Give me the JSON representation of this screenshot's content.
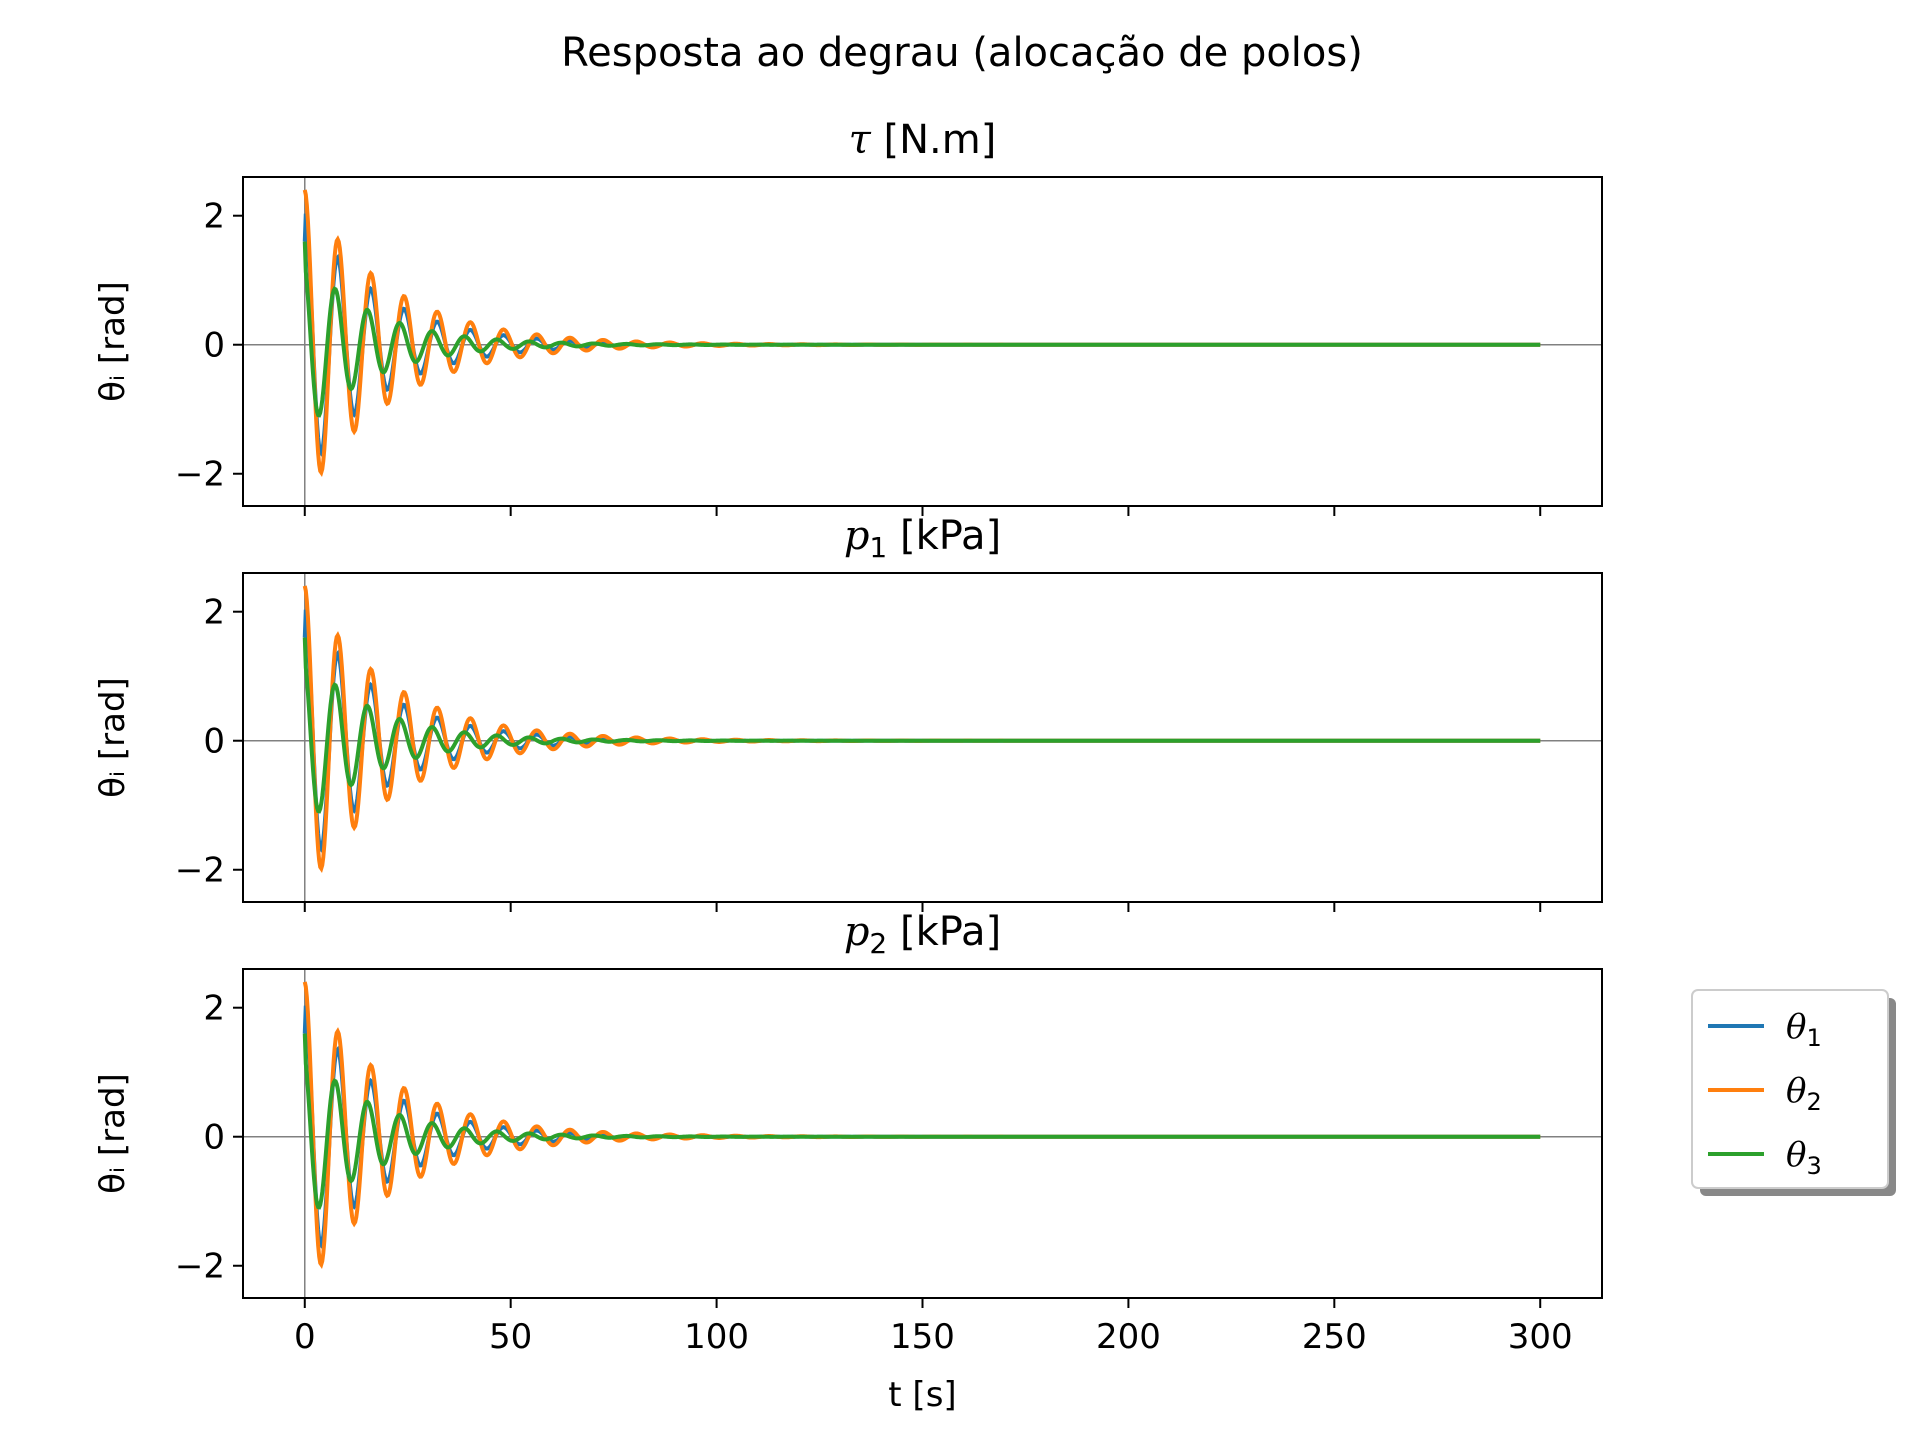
{
  "figure": {
    "suptitle": "Resposta ao degrau (alocação de polos)"
  },
  "legend": {
    "entries": [
      {
        "sym": "θ",
        "sub": "1",
        "color": "#1f77b4"
      },
      {
        "sym": "θ",
        "sub": "2",
        "color": "#ff7f0e"
      },
      {
        "sym": "θ",
        "sub": "3",
        "color": "#2ca02c"
      }
    ]
  },
  "chart_data": [
    {
      "type": "line",
      "title": {
        "sym": "τ",
        "sub": "",
        "rest": " [N.m]"
      },
      "xlabel": "",
      "ylabel": "θᵢ [rad]",
      "xlim": [
        -15,
        315
      ],
      "ylim": [
        -2.5,
        2.6
      ],
      "xticks": [
        0,
        50,
        100,
        150,
        200,
        250,
        300
      ],
      "xtick_labels": [],
      "yticks": [
        -2,
        0,
        2
      ],
      "ytick_labels": [
        "−2",
        "0",
        "2"
      ],
      "grid": false,
      "series": [
        {
          "name": "θ1",
          "color": "#1f77b4",
          "x0": 1.6,
          "amp": 2.1,
          "omega": 0.78,
          "decay": 0.055,
          "phase": 0.0
        },
        {
          "name": "θ2",
          "color": "#ff7f0e",
          "x0": 2.4,
          "amp": 2.4,
          "omega": 0.78,
          "decay": 0.048,
          "phase": 0.0
        },
        {
          "name": "θ3",
          "color": "#2ca02c",
          "x0": 1.6,
          "amp": 1.35,
          "omega": 0.8,
          "decay": 0.06,
          "phase": 0.35
        }
      ]
    },
    {
      "type": "line",
      "title": {
        "sym": "p",
        "sub": "1",
        "rest": " [kPa]"
      },
      "xlabel": "",
      "ylabel": "θᵢ [rad]",
      "xlim": [
        -15,
        315
      ],
      "ylim": [
        -2.5,
        2.6
      ],
      "xticks": [
        0,
        50,
        100,
        150,
        200,
        250,
        300
      ],
      "xtick_labels": [],
      "yticks": [
        -2,
        0,
        2
      ],
      "ytick_labels": [
        "−2",
        "0",
        "2"
      ],
      "grid": false,
      "series": [
        {
          "name": "θ1",
          "color": "#1f77b4",
          "x0": 1.6,
          "amp": 2.1,
          "omega": 0.78,
          "decay": 0.055,
          "phase": 0.0
        },
        {
          "name": "θ2",
          "color": "#ff7f0e",
          "x0": 2.4,
          "amp": 2.4,
          "omega": 0.78,
          "decay": 0.048,
          "phase": 0.0
        },
        {
          "name": "θ3",
          "color": "#2ca02c",
          "x0": 1.6,
          "amp": 1.35,
          "omega": 0.8,
          "decay": 0.06,
          "phase": 0.35
        }
      ]
    },
    {
      "type": "line",
      "title": {
        "sym": "p",
        "sub": "2",
        "rest": " [kPa]"
      },
      "xlabel": "t [s]",
      "ylabel": "θᵢ [rad]",
      "xlim": [
        -15,
        315
      ],
      "ylim": [
        -2.5,
        2.6
      ],
      "xticks": [
        0,
        50,
        100,
        150,
        200,
        250,
        300
      ],
      "xtick_labels": [
        "0",
        "50",
        "100",
        "150",
        "200",
        "250",
        "300"
      ],
      "yticks": [
        -2,
        0,
        2
      ],
      "ytick_labels": [
        "−2",
        "0",
        "2"
      ],
      "grid": false,
      "series": [
        {
          "name": "θ1",
          "color": "#1f77b4",
          "x0": 1.6,
          "amp": 2.1,
          "omega": 0.78,
          "decay": 0.055,
          "phase": 0.0
        },
        {
          "name": "θ2",
          "color": "#ff7f0e",
          "x0": 2.4,
          "amp": 2.4,
          "omega": 0.78,
          "decay": 0.048,
          "phase": 0.0
        },
        {
          "name": "θ3",
          "color": "#2ca02c",
          "x0": 1.6,
          "amp": 1.35,
          "omega": 0.8,
          "decay": 0.06,
          "phase": 0.35
        }
      ]
    }
  ]
}
